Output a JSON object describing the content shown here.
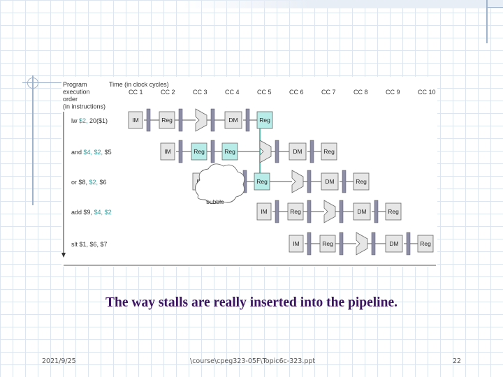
{
  "diagram": {
    "order_label": [
      "Program",
      "execution",
      "order",
      "(in instructions)"
    ],
    "time_label": "Time (in clock cycles)",
    "clock_cycles": [
      "CC 1",
      "CC 2",
      "CC 3",
      "CC 4",
      "CC 5",
      "CC 6",
      "CC 7",
      "CC 8",
      "CC 9",
      "CC 10"
    ],
    "instructions": [
      {
        "op": "lw",
        "args": [
          "$2,",
          "20($1)"
        ],
        "arg_colors": [
          "#2e9b9b",
          "#333333"
        ],
        "start_cycle": 0
      },
      {
        "op": "and",
        "args": [
          "$4,",
          "$2,",
          "$5"
        ],
        "arg_colors": [
          "#2e9b9b",
          "#2e9b9b",
          "#333333"
        ],
        "start_cycle": 1
      },
      {
        "op": "or",
        "args": [
          "$8,",
          "$2,",
          "$6"
        ],
        "arg_colors": [
          "#333333",
          "#2e9b9b",
          "#333333"
        ],
        "start_cycle": 2
      },
      {
        "op": "add",
        "args": [
          "$9,",
          "$4,",
          "$2"
        ],
        "arg_colors": [
          "#333333",
          "#2e9b9b",
          "#2e9b9b"
        ],
        "start_cycle": 4
      },
      {
        "op": "slt",
        "args": [
          "$1,",
          "$6,",
          "$7"
        ],
        "arg_colors": [
          "#333333",
          "#333333",
          "#333333"
        ],
        "start_cycle": 5
      }
    ],
    "stages": {
      "im": "IM",
      "reg": "Reg",
      "dm": "DM"
    },
    "stall_rows": [
      {
        "row": 1,
        "cycle": 2
      },
      {
        "row": 2,
        "cycle": 2
      }
    ],
    "bubble_label": "bubble",
    "colors": {
      "stall": "#40c8c0",
      "forward": "#1a9e8a",
      "unit": "#e6e6e6",
      "bar": "#8d8da8"
    }
  },
  "caption": "The way stalls are really inserted into the pipeline.",
  "footer": {
    "date": "2021/9/25",
    "path": "\\course\\cpeg323-05F\\Topic6c-323.ppt",
    "page": "22"
  }
}
